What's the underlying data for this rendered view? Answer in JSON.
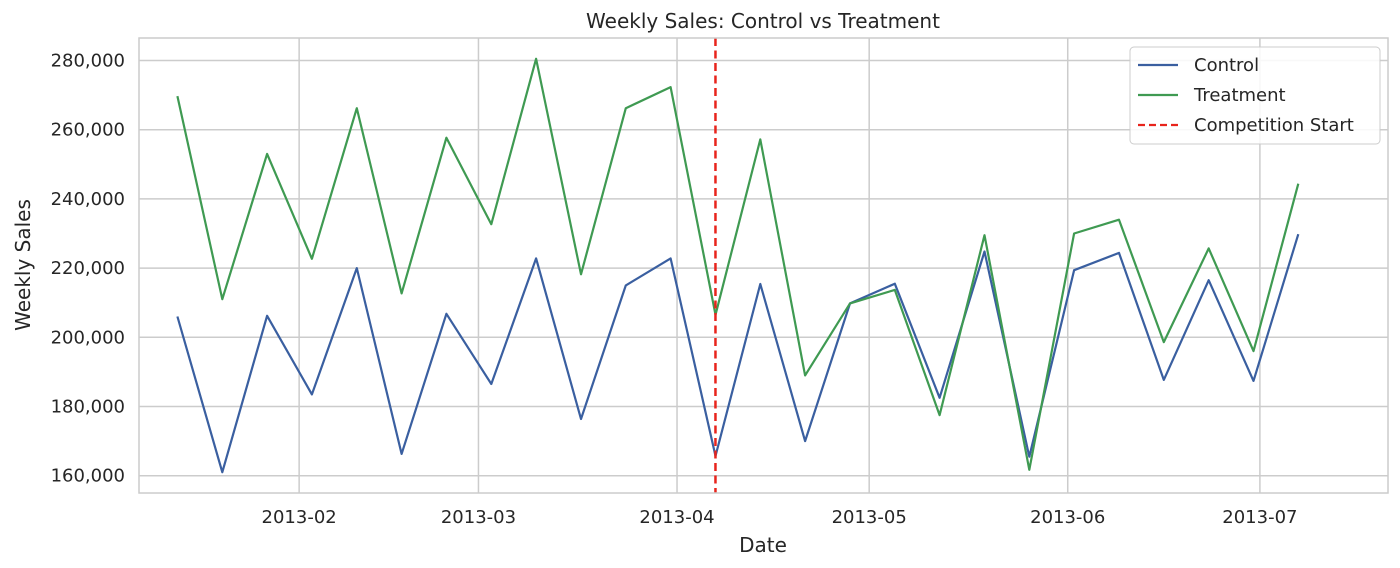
{
  "chart_data": {
    "type": "line",
    "title": "Weekly Sales: Control vs Treatment",
    "xlabel": "Date",
    "ylabel": "Weekly Sales",
    "ylim": [
      155000,
      286500
    ],
    "xlim": [
      "2013-01-07",
      "2013-07-21"
    ],
    "yticks": [
      160000,
      180000,
      200000,
      220000,
      240000,
      260000,
      280000
    ],
    "ytick_labels": [
      "160,000",
      "180,000",
      "200,000",
      "220,000",
      "240,000",
      "260,000",
      "280,000"
    ],
    "xticks": [
      "2013-02-01",
      "2013-03-01",
      "2013-04-01",
      "2013-05-01",
      "2013-06-01",
      "2013-07-01"
    ],
    "xtick_labels": [
      "2013-02",
      "2013-03",
      "2013-04",
      "2013-05",
      "2013-06",
      "2013-07"
    ],
    "grid": true,
    "legend_position": "top-right",
    "x": [
      "2013-01-13",
      "2013-01-20",
      "2013-01-27",
      "2013-02-03",
      "2013-02-10",
      "2013-02-17",
      "2013-02-24",
      "2013-03-03",
      "2013-03-10",
      "2013-03-17",
      "2013-03-24",
      "2013-03-31",
      "2013-04-07",
      "2013-04-14",
      "2013-04-21",
      "2013-04-28",
      "2013-05-05",
      "2013-05-12",
      "2013-05-19",
      "2013-05-26",
      "2013-06-02",
      "2013-06-09",
      "2013-06-16",
      "2013-06-23",
      "2013-06-30",
      "2013-07-07"
    ],
    "series": [
      {
        "name": "Control",
        "color": "#3a5fa0",
        "values": [
          206000,
          161000,
          206200,
          183500,
          220000,
          166300,
          206800,
          186500,
          222800,
          176400,
          215000,
          222800,
          165700,
          215400,
          170000,
          209800,
          215500,
          182500,
          224800,
          165500,
          219400,
          224400,
          187700,
          216500,
          187400,
          229800
        ]
      },
      {
        "name": "Treatment",
        "color": "#3f9a52",
        "values": [
          269700,
          211000,
          253000,
          222700,
          266200,
          212700,
          257700,
          232700,
          280500,
          218200,
          266200,
          272300,
          206500,
          257200,
          189000,
          209800,
          213700,
          177500,
          229500,
          161700,
          230000,
          234000,
          198600,
          225700,
          196000,
          244400
        ]
      }
    ],
    "annotations": [
      {
        "type": "vline",
        "x": "2013-04-07",
        "label": "Competition Start",
        "color": "#e8241c",
        "style": "dashed"
      }
    ]
  }
}
